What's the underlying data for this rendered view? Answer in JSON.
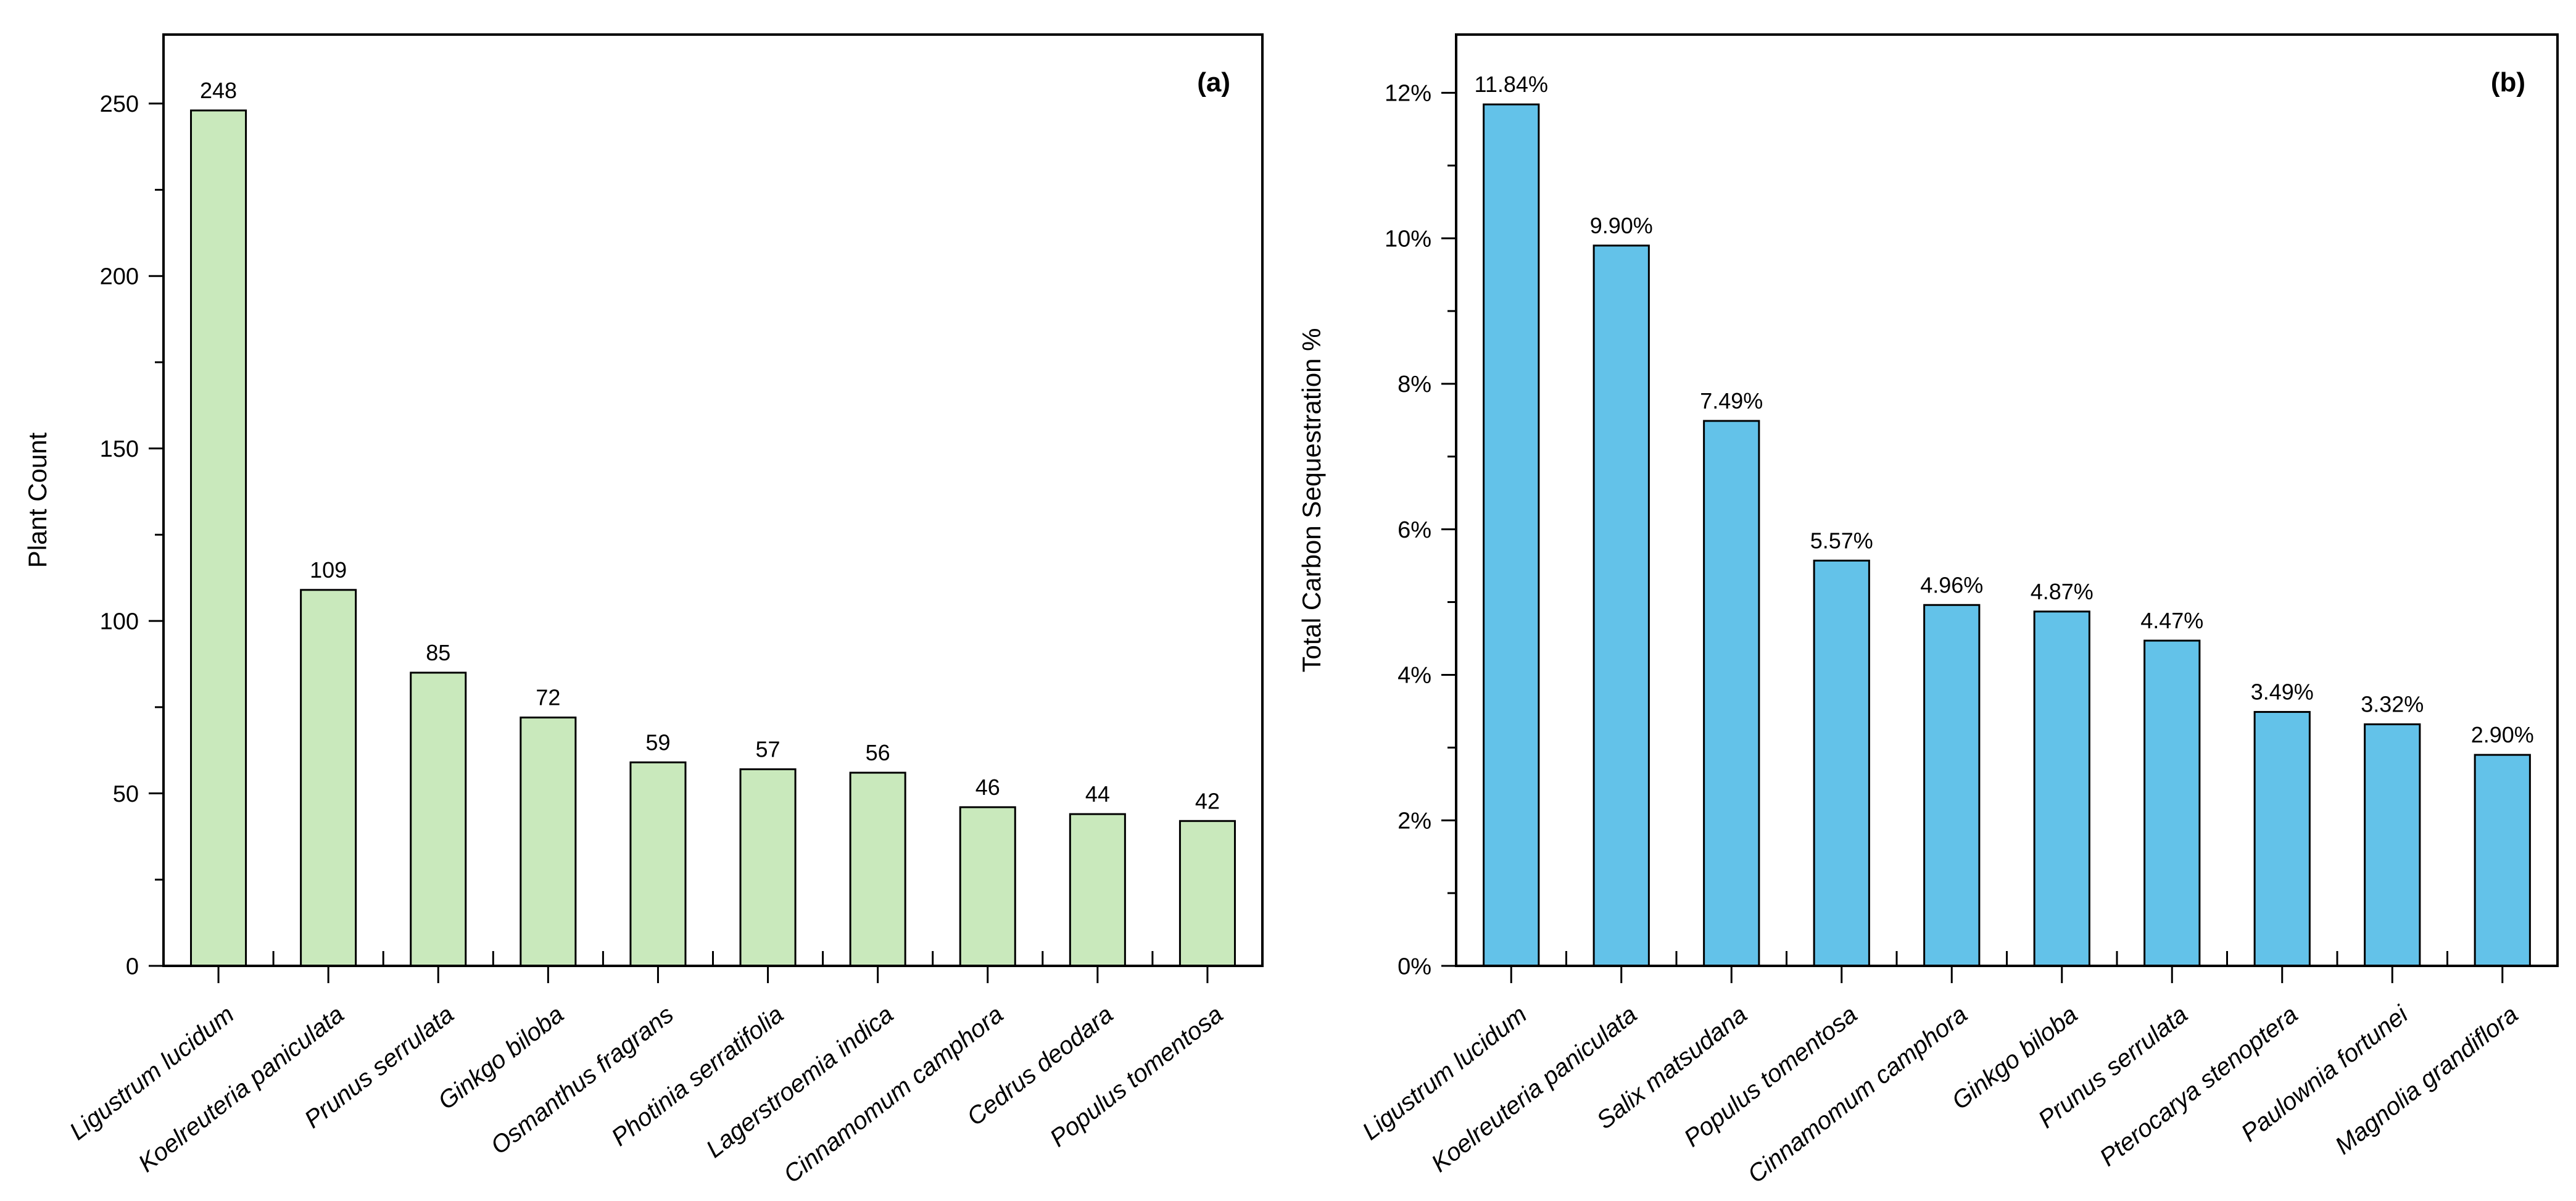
{
  "figure": {
    "background": "#ffffff",
    "frame_color": "#000000",
    "text_color": "#000000"
  },
  "chart_data": [
    {
      "type": "bar",
      "panel_label": "(a)",
      "title": "",
      "xlabel": "",
      "ylabel": "Plant Count",
      "grid": "off",
      "legend": "none",
      "bar_color": "#c9e9bc",
      "bar_edge_color": "#000000",
      "categories": [
        "Ligustrum lucidum",
        "Koelreuteria paniculata",
        "Prunus serrulata",
        "Ginkgo biloba",
        "Osmanthus fragrans",
        "Photinia serratifolia",
        "Lagerstroemia indica",
        "Cinnamomum camphora",
        "Cedrus deodara",
        "Populus tomentosa"
      ],
      "values": [
        248,
        109,
        85,
        72,
        59,
        57,
        56,
        46,
        44,
        42
      ],
      "value_labels": [
        "248",
        "109",
        "85",
        "72",
        "59",
        "57",
        "56",
        "46",
        "44",
        "42"
      ],
      "ylim": [
        0,
        270
      ],
      "ytick_values": [
        0,
        50,
        100,
        150,
        200,
        250
      ],
      "ytick_labels": [
        "0",
        "50",
        "100",
        "150",
        "200",
        "250"
      ],
      "y_minor_step": 25
    },
    {
      "type": "bar",
      "panel_label": "(b)",
      "title": "",
      "xlabel": "",
      "ylabel": "Total Carbon Sequestration %",
      "grid": "off",
      "legend": "none",
      "bar_color": "#63c2e9",
      "bar_edge_color": "#000000",
      "categories": [
        "Ligustrum lucidum",
        "Koelreuteria paniculata",
        "Salix matsudana",
        "Populus tomentosa",
        "Cinnamomum camphora",
        "Ginkgo biloba",
        "Prunus serrulata",
        "Pterocarya stenoptera",
        "Paulownia fortunei",
        "Magnolia grandiflora"
      ],
      "values": [
        11.84,
        9.9,
        7.49,
        5.57,
        4.96,
        4.87,
        4.47,
        3.49,
        3.32,
        2.9
      ],
      "value_labels": [
        "11.84%",
        "9.90%",
        "7.49%",
        "5.57%",
        "4.96%",
        "4.87%",
        "4.47%",
        "3.49%",
        "3.32%",
        "2.90%"
      ],
      "ylim": [
        0,
        12.8
      ],
      "ytick_values": [
        0,
        2,
        4,
        6,
        8,
        10,
        12
      ],
      "ytick_labels": [
        "0%",
        "2%",
        "4%",
        "6%",
        "8%",
        "10%",
        "12%"
      ],
      "y_minor_step": 1
    }
  ]
}
